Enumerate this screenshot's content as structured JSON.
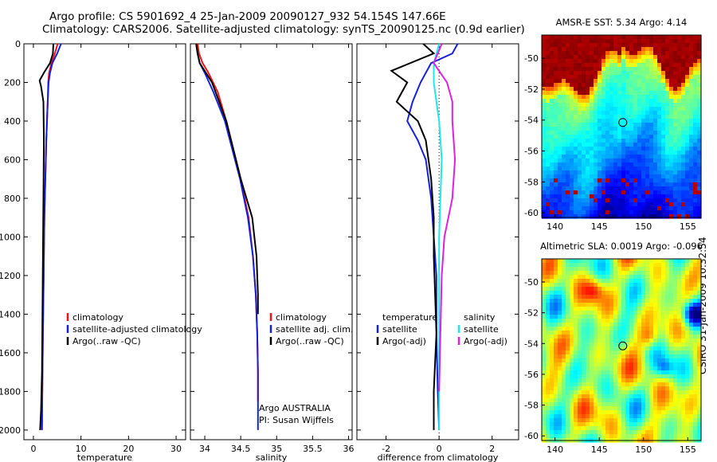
{
  "header": {
    "title_line1": "Argo profile: CS 5901692_4 25-Jan-2009 20090127_932 54.154S 147.66E",
    "title_line2": "Climatology: CARS2006. Satellite-adjusted climatology: synTS_20090125.nc (0.9d earlier)"
  },
  "side_label": "CSIRO 31-Jan-2009 10:32:54",
  "colors": {
    "red": "#e8141c",
    "blue": "#1620d8",
    "black": "#000000",
    "cyan": "#20e8e8",
    "magenta": "#e020e0"
  },
  "chart_data": [
    {
      "id": "temperature",
      "type": "line",
      "xlabel": "temperature",
      "xlim": [
        -2,
        32
      ],
      "xticks": [
        0,
        10,
        20,
        30
      ],
      "ylim": [
        0,
        2050
      ],
      "yticks": [
        0,
        200,
        400,
        600,
        800,
        1000,
        1200,
        1400,
        1600,
        1800,
        2000
      ],
      "legend": [
        "climatology",
        "satellite-adjusted climatology",
        "Argo(..raw -QC)"
      ],
      "series": [
        {
          "name": "climatology",
          "color": "red",
          "x": [
            5.1,
            4.5,
            3.8,
            3.3,
            3.1,
            3.0,
            2.7,
            2.5,
            2.3,
            2.2,
            2.1,
            2.0,
            1.9,
            1.8
          ],
          "y": [
            0,
            50,
            100,
            150,
            200,
            300,
            500,
            700,
            900,
            1100,
            1300,
            1500,
            1700,
            2000
          ]
        },
        {
          "name": "satellite-adjusted climatology",
          "color": "blue",
          "x": [
            5.8,
            5.0,
            4.0,
            3.5,
            3.2,
            3.0,
            2.7,
            2.5,
            2.3,
            2.2,
            2.1,
            2.0,
            1.9,
            1.8
          ],
          "y": [
            0,
            50,
            100,
            150,
            200,
            300,
            500,
            700,
            900,
            1100,
            1300,
            1500,
            1700,
            2000
          ]
        },
        {
          "name": "Argo(..raw -QC)",
          "color": "black",
          "x": [
            4.2,
            4.1,
            3.5,
            2.2,
            1.3,
            1.6,
            2.1,
            2.2,
            2.1,
            2.0,
            1.9,
            1.8,
            1.6,
            1.4
          ],
          "y": [
            0,
            50,
            100,
            150,
            190,
            220,
            300,
            500,
            800,
            1100,
            1400,
            1700,
            1900,
            2000
          ]
        }
      ]
    },
    {
      "id": "salinity",
      "type": "line",
      "xlabel": "salinity",
      "xlim": [
        33.8,
        36.05
      ],
      "xticks": [
        34,
        34.5,
        35,
        35.5,
        36
      ],
      "xtick_labels": [
        "34",
        "34.5",
        "35",
        "35.5",
        "36"
      ],
      "ylim": [
        0,
        2050
      ],
      "legend": [
        "climatology",
        "satellite adj. clim.",
        "Argo(..raw -QC)"
      ],
      "annotation": [
        "Argo AUSTRALIA",
        "PI: Susan Wijffels"
      ],
      "series": [
        {
          "name": "climatology",
          "color": "red",
          "x": [
            33.9,
            33.92,
            33.97,
            34.05,
            34.18,
            34.3,
            34.5,
            34.61,
            34.67,
            34.71,
            34.73,
            34.74,
            34.74
          ],
          "y": [
            0,
            50,
            100,
            150,
            250,
            400,
            700,
            900,
            1100,
            1300,
            1500,
            1700,
            1850
          ]
        },
        {
          "name": "satellite adj. clim.",
          "color": "blue",
          "x": [
            33.88,
            33.9,
            33.93,
            34.0,
            34.12,
            34.28,
            34.49,
            34.6,
            34.67,
            34.71,
            34.73,
            34.74,
            34.74,
            34.74
          ],
          "y": [
            0,
            50,
            100,
            150,
            250,
            400,
            700,
            900,
            1100,
            1300,
            1500,
            1700,
            1900,
            2000
          ]
        },
        {
          "name": "Argo(..raw -QC)",
          "color": "black",
          "x": [
            33.88,
            33.9,
            33.93,
            34.1,
            34.3,
            34.5,
            34.66,
            34.72,
            34.74,
            34.74
          ],
          "y": [
            0,
            50,
            100,
            200,
            400,
            700,
            900,
            1100,
            1300,
            1400
          ]
        }
      ]
    },
    {
      "id": "difference",
      "type": "line",
      "xlabel": "difference from climatology",
      "xlim": [
        -3.1,
        3.0
      ],
      "xticks": [
        -2,
        0,
        2
      ],
      "ylim": [
        0,
        2050
      ],
      "legend_groups": [
        {
          "header": "temperature",
          "items": [
            "satellite",
            "Argo(-adj)"
          ]
        },
        {
          "header": "salinity",
          "items": [
            "satellite",
            "Argo(-adj)"
          ]
        }
      ],
      "series": [
        {
          "name": "temperature satellite",
          "color": "blue",
          "x": [
            0.7,
            0.5,
            -0.3,
            -0.7,
            -1.0,
            -1.2,
            -0.8,
            -0.5,
            -0.3,
            -0.2,
            -0.1,
            -0.1,
            -0.05,
            0.0
          ],
          "y": [
            0,
            50,
            100,
            200,
            300,
            400,
            500,
            600,
            800,
            1000,
            1200,
            1500,
            1800,
            2000
          ]
        },
        {
          "name": "temperature Argo(-adj)",
          "color": "black",
          "x": [
            -0.6,
            -0.2,
            -1.8,
            -1.2,
            -1.6,
            -0.8,
            -0.5,
            -0.3,
            -0.2,
            -0.2,
            -0.15,
            -0.1,
            -0.2,
            -0.2
          ],
          "y": [
            0,
            50,
            140,
            200,
            300,
            400,
            500,
            700,
            900,
            1100,
            1300,
            1500,
            1800,
            2000
          ]
        },
        {
          "name": "salinity satellite",
          "color": "cyan",
          "x": [
            0.0,
            -0.2,
            -0.2,
            -0.1,
            0.0,
            0.1,
            0.05,
            0.0,
            0.0,
            0.0,
            0.0
          ],
          "y": [
            0,
            100,
            200,
            300,
            400,
            600,
            800,
            1000,
            1200,
            1500,
            2000
          ]
        },
        {
          "name": "salinity Argo(-adj)",
          "color": "magenta",
          "x": [
            0.1,
            -0.2,
            0.3,
            0.5,
            0.5,
            0.6,
            0.5,
            0.35,
            0.2,
            0.1,
            0.05,
            0.0
          ],
          "y": [
            0,
            100,
            200,
            300,
            400,
            600,
            800,
            900,
            1000,
            1200,
            1500,
            1800
          ]
        }
      ]
    },
    {
      "id": "sst_map",
      "type": "heatmap",
      "title": "AMSR-E SST: 5.34 Argo: 4.14",
      "xticks": [
        140,
        145,
        150,
        155
      ],
      "yticks": [
        -50,
        -52,
        -54,
        -56,
        -58,
        -60
      ],
      "xlim": [
        138.5,
        156.5
      ],
      "ylim": [
        -60.3,
        -48.5
      ],
      "marker": {
        "lon": 147.66,
        "lat": -54.154
      }
    },
    {
      "id": "sla_map",
      "type": "heatmap",
      "title": "Altimetric SLA: 0.0019 Argo: -0.096",
      "xticks": [
        140,
        145,
        150,
        155
      ],
      "yticks": [
        -50,
        -52,
        -54,
        -56,
        -58,
        -60
      ],
      "xlim": [
        138.5,
        156.5
      ],
      "ylim": [
        -60.3,
        -48.5
      ],
      "marker": {
        "lon": 147.66,
        "lat": -54.154
      }
    }
  ]
}
